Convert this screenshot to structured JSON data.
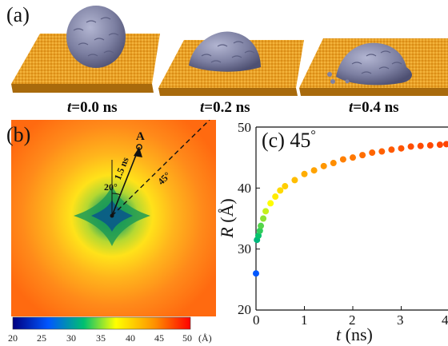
{
  "panel_a": {
    "label": "(a)",
    "snapshots": [
      {
        "prefix": "t",
        "value": "=0.0 ns"
      },
      {
        "prefix": "t",
        "value": "=0.2 ns"
      },
      {
        "prefix": "t",
        "value": "=0.4 ns"
      }
    ],
    "colors": {
      "substrate": "#e59a1c",
      "droplet": "#7f82a3"
    }
  },
  "panel_b": {
    "label": "(b)",
    "point_label": "A",
    "arrow_label": "1.5 ns",
    "angle_label_1": "20°",
    "angle_label_2": "45°",
    "colorbar": {
      "ticks": [
        "20",
        "25",
        "30",
        "35",
        "40",
        "45",
        "50"
      ],
      "unit": "(Å)",
      "colors": [
        "#000080",
        "#0057ff",
        "#00c070",
        "#ffff00",
        "#ff9000",
        "#ff0000"
      ]
    }
  },
  "panel_c": {
    "label": "(c) 45",
    "label_degree": "°",
    "ylabel_italic": "R",
    "ylabel_unit": " (Å)",
    "xlabel_italic": "t",
    "xlabel_unit": " (ns)"
  },
  "chart_data": {
    "type": "scatter",
    "title": "(c) 45°",
    "xlabel": "t (ns)",
    "ylabel": "R (Å)",
    "xlim": [
      0,
      4
    ],
    "ylim": [
      20,
      50
    ],
    "xticks": [
      "0",
      "1",
      "2",
      "3",
      "4"
    ],
    "yticks": [
      "20",
      "30",
      "40",
      "50"
    ],
    "grid": false,
    "series": [
      {
        "x": [
          0.0,
          0.02,
          0.05,
          0.08,
          0.1,
          0.15,
          0.2,
          0.3,
          0.4,
          0.5,
          0.6,
          0.8,
          1.0,
          1.2,
          1.4,
          1.6,
          1.8,
          2.0,
          2.2,
          2.4,
          2.6,
          2.8,
          3.0,
          3.2,
          3.4,
          3.6,
          3.8,
          4.0
        ],
        "y": [
          26.0,
          31.5,
          32.2,
          33.0,
          33.8,
          35.0,
          36.2,
          37.5,
          38.6,
          39.6,
          40.3,
          41.3,
          42.3,
          42.9,
          43.6,
          44.1,
          44.7,
          45.0,
          45.4,
          45.8,
          46.0,
          46.3,
          46.5,
          46.8,
          46.9,
          47.0,
          47.1,
          47.2
        ]
      }
    ]
  }
}
